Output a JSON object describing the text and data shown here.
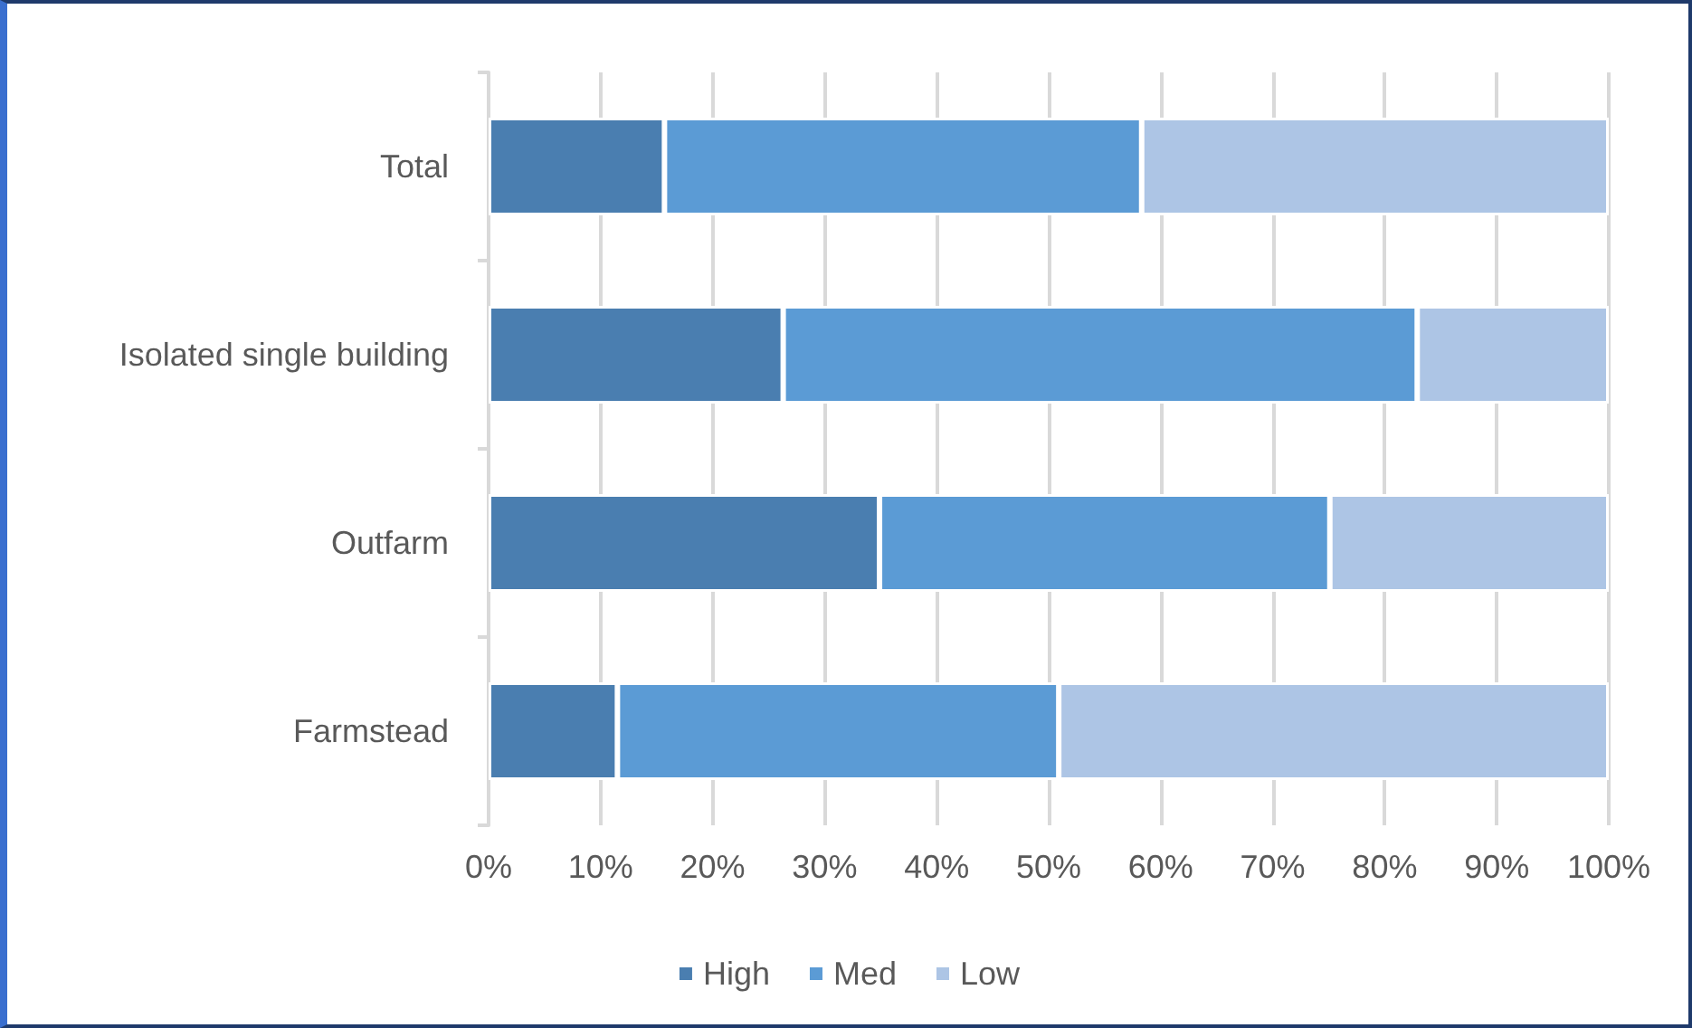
{
  "chart_data": {
    "type": "bar",
    "orientation": "horizontal",
    "stacked": true,
    "categories": [
      "Total",
      "Isolated single building",
      "Outfarm",
      "Farmstead"
    ],
    "series": [
      {
        "name": "High",
        "color": "#4a7eb0",
        "values": [
          15.7,
          26.3,
          34.9,
          11.5
        ]
      },
      {
        "name": "Med",
        "color": "#5b9bd5",
        "values": [
          42.6,
          56.6,
          40.2,
          39.4
        ]
      },
      {
        "name": "Low",
        "color": "#adc5e5",
        "values": [
          41.7,
          17.1,
          24.9,
          49.1
        ]
      }
    ],
    "xlim": [
      0,
      100
    ],
    "xticks": [
      {
        "value": 0,
        "label": "0%"
      },
      {
        "value": 10,
        "label": "10%"
      },
      {
        "value": 20,
        "label": "20%"
      },
      {
        "value": 30,
        "label": "30%"
      },
      {
        "value": 40,
        "label": "40%"
      },
      {
        "value": 50,
        "label": "50%"
      },
      {
        "value": 60,
        "label": "60%"
      },
      {
        "value": 70,
        "label": "70%"
      },
      {
        "value": 80,
        "label": "80%"
      },
      {
        "value": 90,
        "label": "90%"
      },
      {
        "value": 100,
        "label": "100%"
      }
    ],
    "grid": "x",
    "legend": "bottom"
  }
}
